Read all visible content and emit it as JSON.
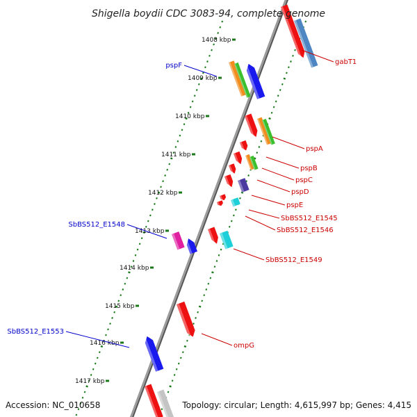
{
  "title": "Shigella boydii CDC 3083-94, complete genome",
  "accession": "Accession: NC_010658",
  "topology": "Topology: circular; Length: 4,615,997 bp; Genes: 4,415",
  "colors": {
    "backbone": "#8a8a8a",
    "tick": "#1a7a1a",
    "label_left": "#0000cc",
    "label_right": "#cc0000",
    "red": "#ee1111",
    "blue": "#1a1aee",
    "orange": "#f28c1c",
    "green": "#3bbf2c",
    "magenta": "#e020a0",
    "cyan": "#1ccfd8",
    "purple": "#4b3aa0",
    "steel": "#4d86c2",
    "grey": "#c4c4c4"
  },
  "kbp_ticks": [
    {
      "label": "1408 kbp"
    },
    {
      "label": "1409 kbp"
    },
    {
      "label": "1410 kbp"
    },
    {
      "label": "1411 kbp"
    },
    {
      "label": "1412 kbp"
    },
    {
      "label": "1413 kbp"
    },
    {
      "label": "1414 kbp"
    },
    {
      "label": "1415 kbp"
    },
    {
      "label": "1416 kbp"
    },
    {
      "label": "1417 kbp"
    }
  ],
  "gene_labels_left": [
    {
      "name": "pspF"
    },
    {
      "name": "SbBS512_E1548"
    },
    {
      "name": "SbBS512_E1553"
    }
  ],
  "gene_labels_right": [
    {
      "name": "gabT1"
    },
    {
      "name": "pspA"
    },
    {
      "name": "pspB"
    },
    {
      "name": "pspC"
    },
    {
      "name": "pspD"
    },
    {
      "name": "pspE"
    },
    {
      "name": "SbBS512_E1545"
    },
    {
      "name": "SbBS512_E1546"
    },
    {
      "name": "SbBS512_E1549"
    },
    {
      "name": "ompG"
    }
  ]
}
